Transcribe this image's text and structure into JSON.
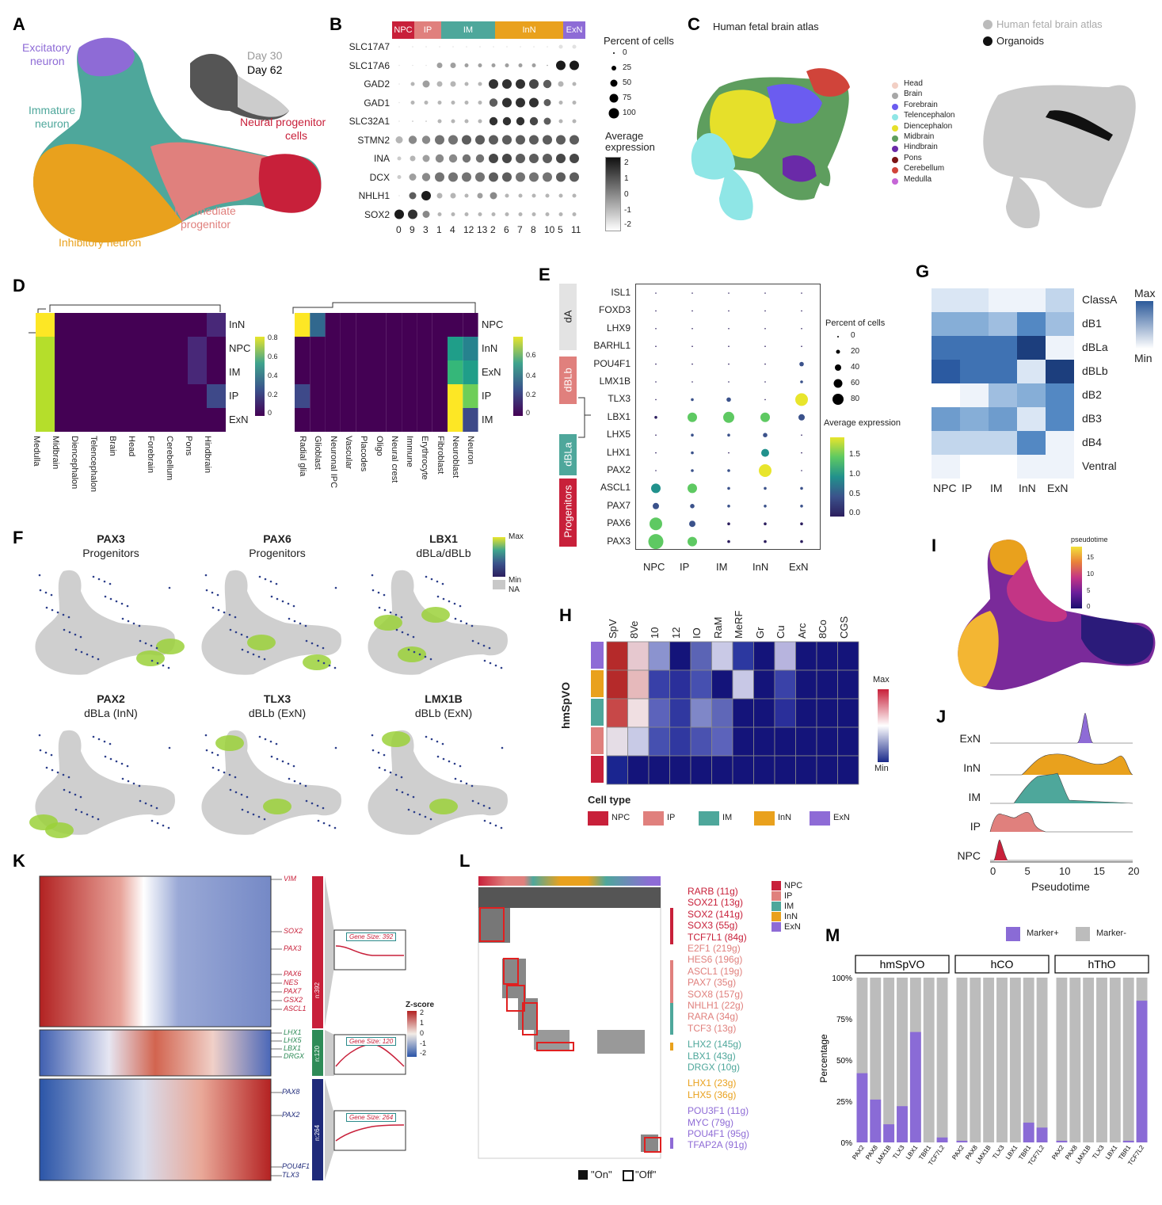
{
  "panels": {
    "A": {
      "letter": "A",
      "labels": {
        "excitatory": "Excitatory\nneuron",
        "excitatory_l1": "Excitatory",
        "excitatory_l2": "neuron",
        "immature_l1": "Immature",
        "immature_l2": "neuron",
        "inhibitory": "Inhibitory neuron",
        "intermediate_l1": "Intermediate",
        "intermediate_l2": "progenitor",
        "npc_l1": "Neural progenitor",
        "npc_l2": "cells",
        "day30": "Day 30",
        "day62": "Day 62"
      },
      "colors": {
        "ExN": "#8e6bd6",
        "IM": "#4ea79b",
        "InN": "#e9a11d",
        "IP": "#e0807d",
        "NPC": "#c8203a"
      }
    },
    "B": {
      "letter": "B",
      "groups": [
        "NPC",
        "IP",
        "IM",
        "InN",
        "ExN"
      ],
      "genes": [
        "SLC17A7",
        "SLC17A6",
        "GAD2",
        "GAD1",
        "SLC32A1",
        "STMN2",
        "INA",
        "DCX",
        "NHLH1",
        "SOX2"
      ],
      "clusters": [
        "0",
        "9",
        "3",
        "1",
        "4",
        "12",
        "13",
        "2",
        "6",
        "7",
        "8",
        "10",
        "5",
        "11"
      ],
      "legend_pct_title": "Percent of cells",
      "legend_pct": [
        "0",
        "25",
        "50",
        "75",
        "100"
      ],
      "legend_expr_title_1": "Average",
      "legend_expr_title_2": "expression",
      "legend_expr": [
        "2",
        "1",
        "0",
        "-1",
        "-2"
      ]
    },
    "C": {
      "letter": "C",
      "title_left": "Human fetal brain atlas",
      "legend_top_1": "Human fetal brain atlas",
      "legend_top_2": "Organoids",
      "regions": [
        {
          "name": "Head",
          "color": "#f2cfc4"
        },
        {
          "name": "Brain",
          "color": "#a7a7a7"
        },
        {
          "name": "Forebrain",
          "color": "#6b5cf0"
        },
        {
          "name": "Telencephalon",
          "color": "#8fe6e6"
        },
        {
          "name": "Diencephalon",
          "color": "#e6e02a"
        },
        {
          "name": "Midbrain",
          "color": "#5e9e5e"
        },
        {
          "name": "Hindbrain",
          "color": "#6a2aa8"
        },
        {
          "name": "Pons",
          "color": "#7a1414"
        },
        {
          "name": "Cerebellum",
          "color": "#d0443a"
        },
        {
          "name": "Medulla",
          "color": "#c566d6"
        }
      ]
    },
    "D": {
      "letter": "D",
      "rows_left": [
        "InN",
        "NPC",
        "IM",
        "IP",
        "ExN"
      ],
      "cols_left": [
        "Medulla",
        "Midbrain",
        "Diencephalon",
        "Telencephalon",
        "Brain",
        "Head",
        "Forebrain",
        "Cerebellum",
        "Pons",
        "Hindbrain"
      ],
      "scale_left": [
        "0.8",
        "0.6",
        "0.4",
        "0.2",
        "0"
      ],
      "rows_right": [
        "NPC",
        "InN",
        "ExN",
        "IP",
        "IM"
      ],
      "cols_right": [
        "Radial glia",
        "Glioblast",
        "Neuronal IPC",
        "Vascular",
        "Placodes",
        "Oligo",
        "Neural crest",
        "Immune",
        "Erythrocyte",
        "Fibroblast",
        "Neuroblast",
        "Neuron"
      ],
      "scale_right": [
        "0.6",
        "0.4",
        "0.2",
        "0"
      ]
    },
    "E": {
      "letter": "E",
      "genes": [
        "ISL1",
        "FOXD3",
        "LHX9",
        "BARHL1",
        "POU4F1",
        "LMX1B",
        "TLX3",
        "LBX1",
        "LHX5",
        "LHX1",
        "PAX2",
        "ASCL1",
        "PAX7",
        "PAX6",
        "PAX3"
      ],
      "cols": [
        "NPC",
        "IP",
        "IM",
        "InN",
        "ExN"
      ],
      "side": [
        "dA",
        "dBLb",
        "dBLa",
        "Progenitors"
      ],
      "legend_pct_title": "Percent of cells",
      "legend_pct": [
        "0",
        "20",
        "40",
        "60",
        "80"
      ],
      "legend_expr_title": "Average expression",
      "legend_expr": [
        "1.5",
        "1.0",
        "0.5",
        "0.0"
      ]
    },
    "F": {
      "letter": "F",
      "maps": [
        {
          "gene": "PAX3",
          "sub": "Progenitors"
        },
        {
          "gene": "PAX6",
          "sub": "Progenitors"
        },
        {
          "gene": "LBX1",
          "sub": "dBLa/dBLb"
        },
        {
          "gene": "PAX2",
          "sub": "dBLa (InN)"
        },
        {
          "gene": "TLX3",
          "sub": "dBLb (ExN)"
        },
        {
          "gene": "LMX1B",
          "sub": "dBLb (ExN)"
        }
      ],
      "legend": [
        "Max",
        "Min",
        "NA"
      ]
    },
    "G": {
      "letter": "G",
      "rows": [
        "ClassA",
        "dB1",
        "dBLa",
        "dBLb",
        "dB2",
        "dB3",
        "dB4",
        "Ventral"
      ],
      "cols": [
        "NPC",
        "IP",
        "IM",
        "InN",
        "ExN"
      ],
      "legend": [
        "Max",
        "Min"
      ]
    },
    "H": {
      "letter": "H",
      "cols": [
        "SpV",
        "8Ve",
        "10",
        "12",
        "IO",
        "RaM",
        "MeRF",
        "Gr",
        "Cu",
        "Arc",
        "8Co",
        "CGS"
      ],
      "ylabel": "hmSpVO",
      "legend": [
        "Max",
        "Min"
      ],
      "celltype_title": "Cell type",
      "celltypes": [
        "NPC",
        "IP",
        "IM",
        "InN",
        "ExN"
      ]
    },
    "I": {
      "letter": "I",
      "legend_title": "pseudotime",
      "legend": [
        "15",
        "10",
        "5",
        "0"
      ]
    },
    "J": {
      "letter": "J",
      "rows": [
        "ExN",
        "InN",
        "IM",
        "IP",
        "NPC"
      ],
      "ticks": [
        "0",
        "5",
        "10",
        "15",
        "20"
      ],
      "xlabel": "Pseudotime"
    },
    "K": {
      "letter": "K",
      "genes_red": [
        "VIM",
        "SOX2",
        "PAX3",
        "PAX6",
        "NES",
        "PAX7",
        "GSX2",
        "ASCL1"
      ],
      "genes_green": [
        "LHX1",
        "LHX5",
        "LBX1",
        "DRGX"
      ],
      "genes_blue": [
        "PAX8",
        "PAX2",
        "POU4F1",
        "TLX3"
      ],
      "clusters": [
        "n:392",
        "n:120",
        "n:264"
      ],
      "gene_size": [
        "Gene Size: 392",
        "Gene Size: 120",
        "Gene Size: 264"
      ],
      "zscore_title": "Z-score",
      "zscore": [
        "2",
        "1",
        "0",
        "-1",
        "-2"
      ]
    },
    "L": {
      "letter": "L",
      "legend": [
        "NPC",
        "IP",
        "IM",
        "InN",
        "ExN"
      ],
      "on_off": [
        "\"On\"",
        "\"Off\""
      ],
      "npc_genes": [
        "RARB (11g)",
        "SOX21 (13g)",
        "SOX2 (141g)",
        "SOX3 (55g)",
        "TCF7L1 (84g)"
      ],
      "ip_genes": [
        "E2F1 (219g)",
        "HES6 (196g)",
        "ASCL1 (19g)",
        "PAX7 (35g)",
        "SOX8 (157g)",
        "NHLH1 (22g)",
        "RARA (34g)",
        "TCF3 (13g)"
      ],
      "im_genes": [
        "LHX2 (145g)",
        "LBX1 (43g)",
        "DRGX (10g)"
      ],
      "inn_genes": [
        "LHX1 (23g)",
        "LHX5 (36g)"
      ],
      "exn_genes": [
        "POU3F1 (11g)",
        "MYC (79g)",
        "POU4F1 (95g)",
        "TFAP2A (91g)"
      ]
    },
    "M": {
      "letter": "M",
      "legend": [
        "Marker+",
        "Marker-"
      ]
    }
  },
  "chart_data": {
    "type": "bar",
    "title": "",
    "ylabel": "Percentage",
    "ylim": [
      0,
      100
    ],
    "yticks": [
      "0%",
      "25%",
      "50%",
      "75%",
      "100%"
    ],
    "facets": [
      {
        "name": "hmSpVO",
        "categories": [
          "PAX2",
          "PAX8",
          "LMX1B",
          "TLX3",
          "LBX1",
          "TBR1",
          "TCF7L2"
        ],
        "marker_pos": [
          42,
          26,
          11,
          22,
          67,
          0,
          3
        ]
      },
      {
        "name": "hCO",
        "categories": [
          "PAX2",
          "PAX8",
          "LMX1B",
          "TLX3",
          "LBX1",
          "TBR1",
          "TCF7L2"
        ],
        "marker_pos": [
          1,
          0,
          0,
          0,
          0,
          12,
          9
        ]
      },
      {
        "name": "hThO",
        "categories": [
          "PAX2",
          "PAX8",
          "LMX1B",
          "TLX3",
          "LBX1",
          "TBR1",
          "TCF7L2"
        ],
        "marker_pos": [
          1,
          0,
          0,
          0,
          0,
          1,
          86
        ]
      }
    ],
    "series": [
      {
        "name": "Marker+",
        "color": "#8a6bd6"
      },
      {
        "name": "Marker-",
        "color": "#bcbcbc"
      }
    ]
  }
}
